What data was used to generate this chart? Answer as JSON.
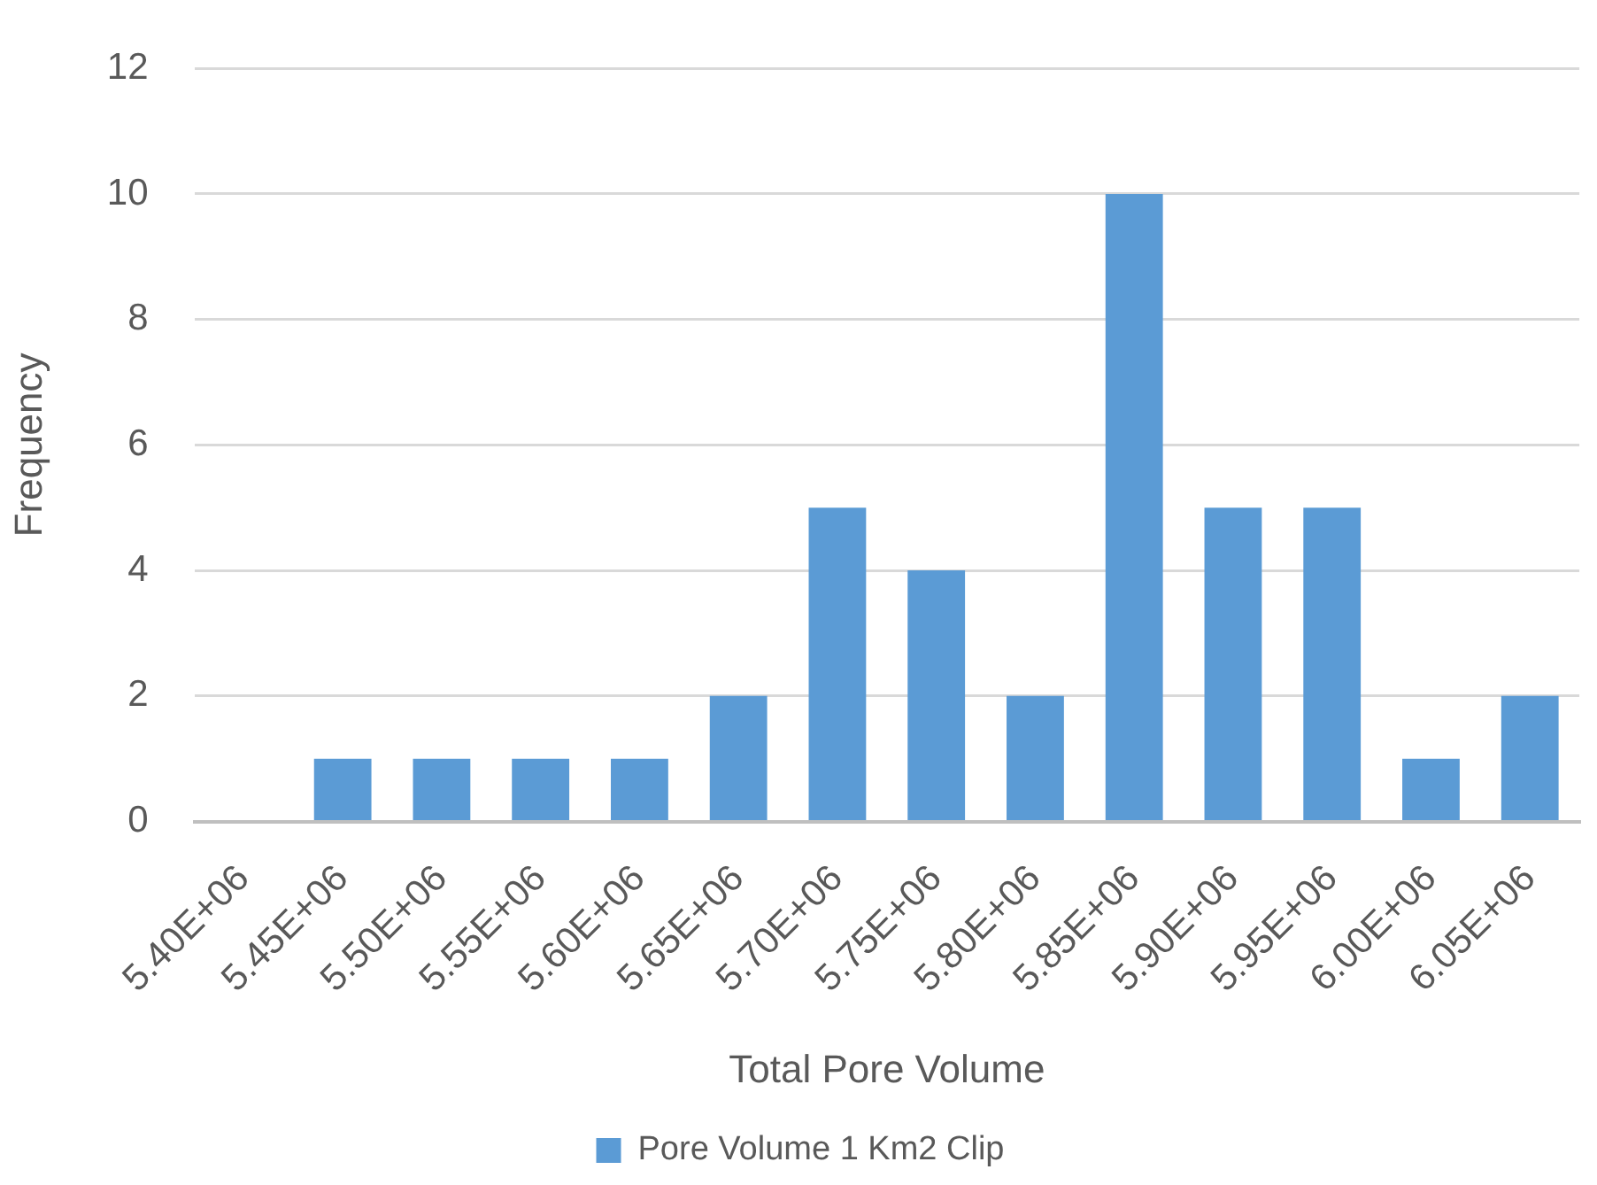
{
  "chart_data": {
    "type": "bar",
    "xlabel": "Total Pore Volume",
    "ylabel": "Frequency",
    "categories": [
      "5.40E+06",
      "5.45E+06",
      "5.50E+06",
      "5.55E+06",
      "5.60E+06",
      "5.65E+06",
      "5.70E+06",
      "5.75E+06",
      "5.80E+06",
      "5.85E+06",
      "5.90E+06",
      "5.95E+06",
      "6.00E+06",
      "6.05E+06"
    ],
    "series": [
      {
        "name": "Pore Volume 1 Km2 Clip",
        "color": "#5b9bd5",
        "values": [
          0,
          1,
          1,
          1,
          1,
          2,
          5,
          4,
          2,
          10,
          5,
          5,
          1,
          2
        ]
      }
    ],
    "ylim": [
      0,
      12
    ],
    "yticks": [
      0,
      2,
      4,
      6,
      8,
      10,
      12
    ],
    "grid": "y",
    "legend": "bottom"
  }
}
